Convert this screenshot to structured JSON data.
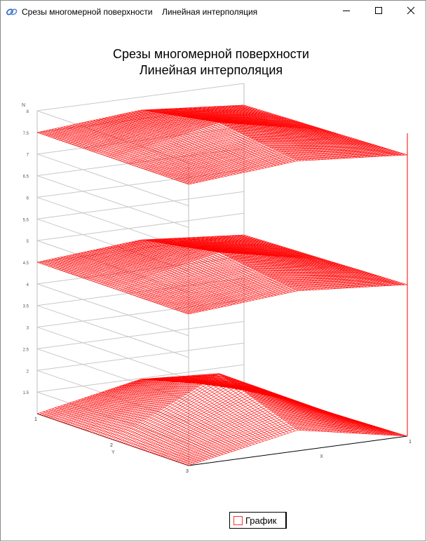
{
  "window": {
    "title": "Срезы многомерной поверхности    Линейная интерполяция",
    "minimize_icon": "minimize-icon",
    "maximize_icon": "maximize-icon",
    "close_icon": "close-icon",
    "app_icon": "app-logo-icon"
  },
  "chart_data": {
    "type": "surface3d",
    "title_line1": "Срезы многомерной поверхности",
    "title_line2": "Линейная интерполяция",
    "axes": {
      "x": {
        "label": "X",
        "ticks": [
          "1"
        ]
      },
      "y": {
        "label": "Y",
        "ticks": [
          "1",
          "2",
          "3"
        ]
      },
      "z": {
        "label": "N",
        "ticks": [
          "1.5",
          "2",
          "2.5",
          "3",
          "3.5",
          "4",
          "4.5",
          "5",
          "5.5",
          "6",
          "6.5",
          "7",
          "7.5",
          "8"
        ],
        "range": [
          1,
          8
        ]
      }
    },
    "series": [
      {
        "name": "График",
        "color": "#ff0000"
      }
    ],
    "slices": [
      {
        "label": "bottom",
        "z_edge": 1.0,
        "z_peak": 2.2
      },
      {
        "label": "middle",
        "z_edge": 4.5,
        "z_peak": 5.0
      },
      {
        "label": "top",
        "z_edge": 7.5,
        "z_peak": 8.0
      }
    ],
    "legend_position": "bottom-center",
    "grid": true
  },
  "legend": {
    "label": "График"
  }
}
